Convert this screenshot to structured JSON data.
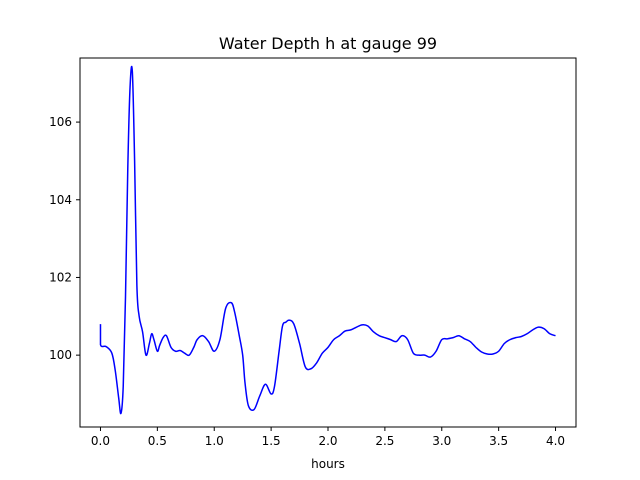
{
  "chart_data": {
    "type": "line",
    "title": "Water Depth h at gauge 99",
    "xlabel": "hours",
    "ylabel": "",
    "xlim": [
      -0.18,
      4.18
    ],
    "ylim": [
      98.15,
      107.65
    ],
    "xticks": [
      0.0,
      0.5,
      1.0,
      1.5,
      2.0,
      2.5,
      3.0,
      3.5,
      4.0
    ],
    "xtick_labels": [
      "0.0",
      "0.5",
      "1.0",
      "1.5",
      "2.0",
      "2.5",
      "3.0",
      "3.5",
      "4.0"
    ],
    "yticks": [
      100,
      102,
      104,
      106
    ],
    "ytick_labels": [
      "100",
      "102",
      "104",
      "106"
    ],
    "grid": false,
    "series": [
      {
        "color": "#0000ff",
        "x": [
          0.0,
          0.0,
          0.05,
          0.1,
          0.13,
          0.16,
          0.18,
          0.2,
          0.22,
          0.24,
          0.26,
          0.28,
          0.3,
          0.32,
          0.34,
          0.37,
          0.4,
          0.43,
          0.45,
          0.47,
          0.5,
          0.52,
          0.55,
          0.58,
          0.62,
          0.66,
          0.7,
          0.74,
          0.78,
          0.82,
          0.85,
          0.9,
          0.95,
          1.0,
          1.05,
          1.1,
          1.15,
          1.18,
          1.22,
          1.25,
          1.27,
          1.3,
          1.35,
          1.4,
          1.45,
          1.5,
          1.53,
          1.57,
          1.6,
          1.63,
          1.66,
          1.7,
          1.75,
          1.8,
          1.85,
          1.9,
          1.95,
          2.0,
          2.05,
          2.1,
          2.15,
          2.2,
          2.25,
          2.3,
          2.35,
          2.4,
          2.45,
          2.5,
          2.55,
          2.6,
          2.65,
          2.7,
          2.75,
          2.8,
          2.85,
          2.9,
          2.95,
          3.0,
          3.05,
          3.1,
          3.15,
          3.2,
          3.25,
          3.3,
          3.35,
          3.4,
          3.45,
          3.5,
          3.55,
          3.6,
          3.65,
          3.7,
          3.75,
          3.8,
          3.85,
          3.9,
          3.95,
          4.0
        ],
        "y": [
          100.8,
          100.27,
          100.22,
          100.05,
          99.6,
          98.9,
          98.5,
          99.2,
          101.5,
          104.8,
          106.9,
          107.3,
          105.0,
          101.8,
          101.0,
          100.6,
          100.0,
          100.3,
          100.55,
          100.4,
          100.1,
          100.25,
          100.45,
          100.5,
          100.2,
          100.1,
          100.12,
          100.05,
          100.0,
          100.2,
          100.4,
          100.5,
          100.35,
          100.1,
          100.4,
          101.2,
          101.35,
          101.1,
          100.5,
          100.0,
          99.3,
          98.7,
          98.6,
          98.95,
          99.25,
          99.0,
          99.2,
          100.1,
          100.75,
          100.85,
          100.9,
          100.8,
          100.3,
          99.7,
          99.65,
          99.8,
          100.05,
          100.2,
          100.4,
          100.5,
          100.62,
          100.65,
          100.72,
          100.78,
          100.75,
          100.6,
          100.5,
          100.45,
          100.4,
          100.35,
          100.5,
          100.4,
          100.05,
          100.0,
          100.0,
          99.95,
          100.1,
          100.4,
          100.42,
          100.45,
          100.5,
          100.42,
          100.35,
          100.2,
          100.08,
          100.03,
          100.03,
          100.1,
          100.3,
          100.4,
          100.45,
          100.48,
          100.55,
          100.65,
          100.72,
          100.68,
          100.55,
          100.5
        ]
      }
    ]
  }
}
